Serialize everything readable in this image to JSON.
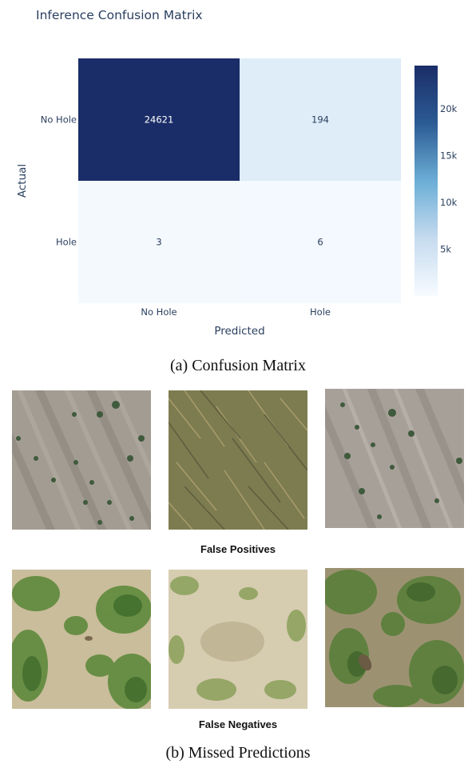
{
  "chart_data": {
    "type": "heatmap",
    "title": "Inference Confusion Matrix",
    "xlabel": "Predicted",
    "ylabel": "Actual",
    "x_categories": [
      "No Hole",
      "Hole"
    ],
    "y_categories": [
      "No Hole",
      "Hole"
    ],
    "values": [
      [
        24621,
        194
      ],
      [
        3,
        6
      ]
    ],
    "colorscale": {
      "low": "#f7fbff",
      "mid": "#6baed6",
      "high": "#1a2d68"
    },
    "colorbar": {
      "ticks": [
        {
          "value": 5000,
          "label": "5k"
        },
        {
          "value": 10000,
          "label": "10k"
        },
        {
          "value": 15000,
          "label": "15k"
        },
        {
          "value": 20000,
          "label": "20k"
        }
      ],
      "range": [
        0,
        24621
      ]
    }
  },
  "captions": {
    "a": "(a) Confusion Matrix",
    "false_positives": "False Positives",
    "false_negatives": "False Negatives",
    "b": "(b) Missed Predictions"
  },
  "images": {
    "false_positives": [
      {
        "type": "bare-soil-furrows-sparse-plants",
        "colors": [
          "#a39c92",
          "#8f887e",
          "#3f5a3c"
        ]
      },
      {
        "type": "dense-dry-grass",
        "colors": [
          "#8a8a58",
          "#6b6b42",
          "#b3a474"
        ]
      },
      {
        "type": "bare-soil-furrows-sparse-plants",
        "colors": [
          "#a7a099",
          "#928b84",
          "#3f5a3c"
        ]
      }
    ],
    "false_negatives": [
      {
        "type": "weedy-soil",
        "colors": [
          "#c9bd9b",
          "#5e8a3c",
          "#3e6b2a"
        ]
      },
      {
        "type": "pale-soil-sparse-weeds",
        "colors": [
          "#d6ccb0",
          "#8aa05a",
          "#b8ad8c"
        ]
      },
      {
        "type": "weedy-soil",
        "colors": [
          "#9c9272",
          "#5a7f3a",
          "#3a5f2a"
        ]
      }
    ]
  }
}
